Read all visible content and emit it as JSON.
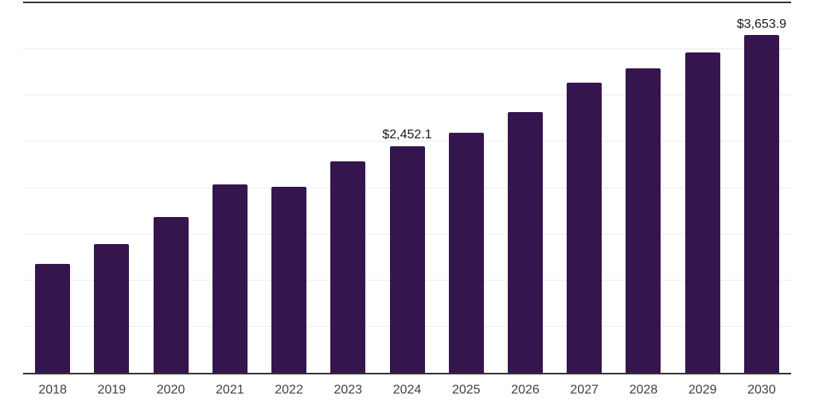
{
  "chart_data": {
    "type": "bar",
    "title": "",
    "xlabel": "",
    "ylabel": "",
    "categories": [
      "2018",
      "2019",
      "2020",
      "2021",
      "2022",
      "2023",
      "2024",
      "2025",
      "2026",
      "2027",
      "2028",
      "2029",
      "2030"
    ],
    "values": [
      1175,
      1395,
      1685,
      2040,
      2015,
      2290,
      2452.1,
      2595,
      2825,
      3140,
      3295,
      3470,
      3653.9
    ],
    "labeled_points": [
      {
        "index": 6,
        "label": "$2,452.1"
      },
      {
        "index": 12,
        "label": "$3,653.9"
      }
    ],
    "ylim": [
      0,
      4000
    ],
    "grid_interval": 500,
    "grid": true,
    "legend_position": "none",
    "colors": {
      "bar": "#35154E",
      "axis_line": "#333333",
      "gridline": "#ECECEC",
      "tick_label": "#404040",
      "value_label": "#1A1A1A",
      "background": "#FFFFFF"
    }
  }
}
